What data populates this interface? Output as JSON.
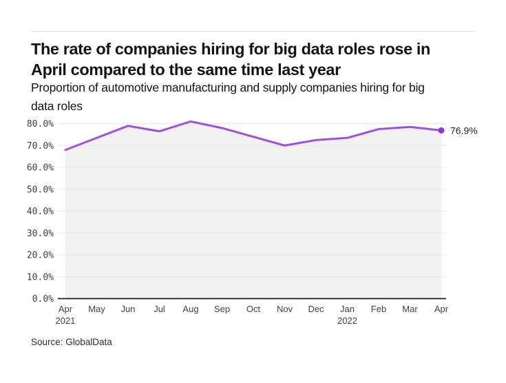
{
  "page": {
    "title": "The rate of companies hiring for big data roles rose in\nApril compared to the same time last year",
    "subtitle": "Proportion of automotive manufacturing and supply companies hiring for big\ndata roles",
    "source": "Source: GlobalData"
  },
  "chart_data": {
    "type": "area",
    "title": "The rate of companies hiring for big data roles rose in April compared to the same time last year",
    "subtitle": "Proportion of automotive manufacturing and supply companies hiring for big data roles",
    "categories": [
      {
        "month": "Apr",
        "year": "2021"
      },
      {
        "month": "May"
      },
      {
        "month": "Jun"
      },
      {
        "month": "Jul"
      },
      {
        "month": "Aug"
      },
      {
        "month": "Sep"
      },
      {
        "month": "Oct"
      },
      {
        "month": "Nov"
      },
      {
        "month": "Dec"
      },
      {
        "month": "Jan",
        "year": "2022"
      },
      {
        "month": "Feb"
      },
      {
        "month": "Mar"
      },
      {
        "month": "Apr"
      }
    ],
    "values": [
      68.0,
      73.5,
      79.0,
      76.5,
      81.0,
      78.0,
      74.0,
      70.0,
      72.5,
      73.5,
      77.5,
      78.5,
      76.9
    ],
    "end_label": "76.9%",
    "xlabel": "",
    "ylabel": "",
    "ylim": [
      0,
      80
    ],
    "ytick_step": 10,
    "ytick_suffix": "%",
    "grid": true,
    "legend": false,
    "colors": {
      "line": "#9c4fe2",
      "marker": "#8d35dd",
      "area_fill": "#f1f1f1",
      "grid": "#e7e7e7",
      "axis": "#1a1a1a",
      "tick_text": "#3f3f3f",
      "end_label_text": "#1f1f1f"
    }
  }
}
